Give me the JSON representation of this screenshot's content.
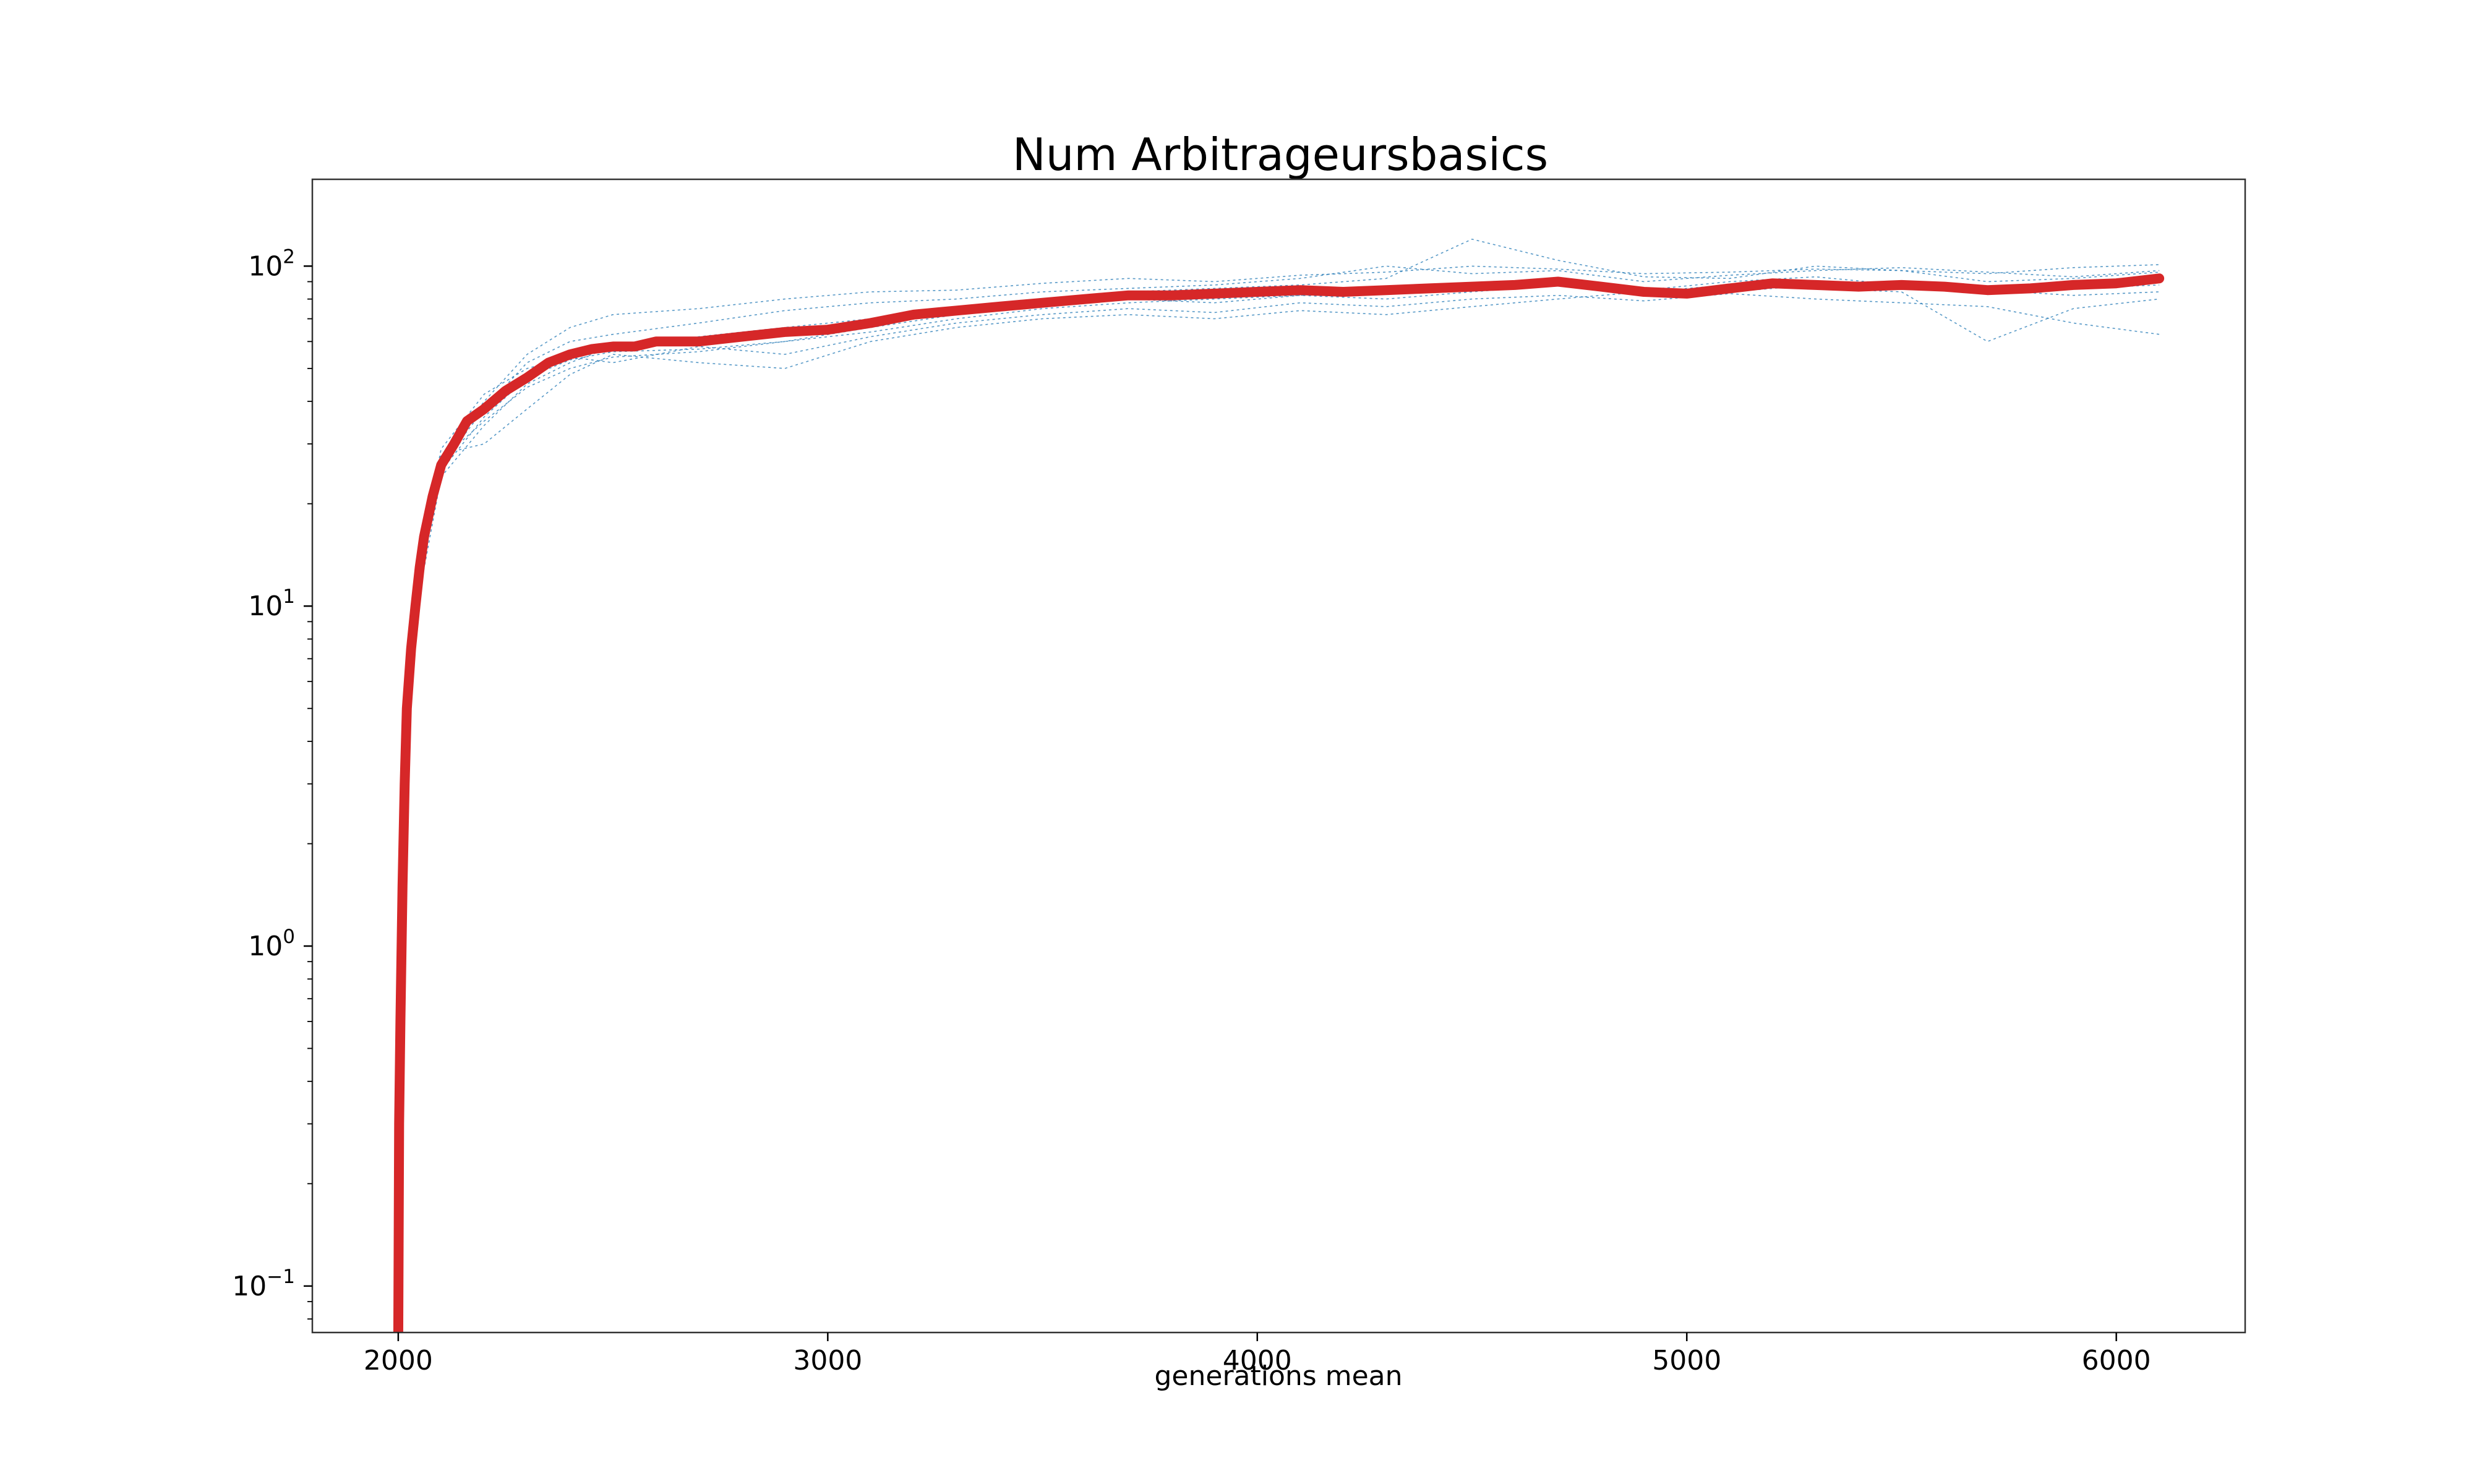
{
  "chart_data": {
    "type": "line",
    "title": "Num Arbitrageursbasics",
    "xlabel": "generations mean",
    "ylabel": "",
    "yscale": "log",
    "xlim": [
      1800,
      6300
    ],
    "ylim": [
      0.073,
      180
    ],
    "xticks": [
      2000,
      3000,
      4000,
      5000,
      6000
    ],
    "xtick_labels": [
      "2000",
      "3000",
      "4000",
      "5000",
      "6000"
    ],
    "yticks": [
      0.1,
      1,
      10,
      100
    ],
    "ytick_labels": [
      {
        "base": "10",
        "exp": "−1"
      },
      {
        "base": "10",
        "exp": "0"
      },
      {
        "base": "10",
        "exp": "1"
      },
      {
        "base": "10",
        "exp": "2"
      }
    ],
    "grid": false,
    "legend": "none",
    "colors": {
      "mean": "#d62728",
      "runs": "#1f77b4"
    },
    "mean_series": {
      "x": [
        2000,
        2002,
        2005,
        2010,
        2015,
        2020,
        2030,
        2040,
        2050,
        2060,
        2080,
        2100,
        2130,
        2160,
        2200,
        2250,
        2300,
        2350,
        2400,
        2450,
        2500,
        2550,
        2600,
        2700,
        2800,
        2900,
        3000,
        3100,
        3200,
        3300,
        3400,
        3500,
        3600,
        3700,
        3800,
        3900,
        4000,
        4100,
        4200,
        4300,
        4400,
        4500,
        4600,
        4700,
        4800,
        4900,
        5000,
        5100,
        5200,
        5300,
        5400,
        5500,
        5600,
        5700,
        5800,
        5900,
        6000,
        6100
      ],
      "y": [
        0.07,
        0.3,
        0.6,
        1.5,
        3.0,
        5.0,
        7.5,
        10,
        13,
        16,
        21,
        26,
        30,
        35,
        38,
        43,
        47,
        52,
        55,
        57,
        58,
        58,
        60,
        60,
        62,
        64,
        65,
        68,
        72,
        74,
        76,
        78,
        80,
        82,
        82,
        83,
        84,
        85,
        84,
        85,
        86,
        87,
        88,
        90,
        87,
        84,
        83,
        86,
        89,
        88,
        87,
        88,
        87,
        85,
        86,
        88,
        89,
        92
      ]
    },
    "runs": [
      {
        "x": [
          2050,
          2100,
          2200,
          2300,
          2400,
          2500,
          2700,
          2900,
          3100,
          3300,
          3500,
          3700,
          3900,
          4100,
          4300,
          4500,
          4700,
          4900,
          5100,
          5300,
          5500,
          5700,
          5900,
          6100
        ],
        "y": [
          13,
          27,
          40,
          55,
          66,
          72,
          75,
          80,
          84,
          85,
          89,
          92,
          90,
          94,
          96,
          100,
          98,
          95,
          96,
          98,
          97,
          95,
          99,
          101
        ]
      },
      {
        "x": [
          2050,
          2100,
          2200,
          2300,
          2400,
          2500,
          2700,
          2900,
          3100,
          3300,
          3500,
          3700,
          3900,
          4100,
          4300,
          4500,
          4700,
          4900,
          5100,
          5300,
          5500,
          5700,
          5900,
          6100
        ],
        "y": [
          12,
          25,
          36,
          47,
          53,
          56,
          57,
          60,
          64,
          70,
          75,
          78,
          80,
          82,
          85,
          88,
          90,
          85,
          90,
          93,
          88,
          85,
          82,
          84
        ]
      },
      {
        "x": [
          2050,
          2100,
          2200,
          2300,
          2400,
          2500,
          2700,
          2900,
          3100,
          3300,
          3500,
          3700,
          3900,
          4100,
          4300,
          4500,
          4700,
          4900,
          5100,
          5300,
          5500,
          5700,
          5900,
          6100
        ],
        "y": [
          14,
          29,
          42,
          50,
          54,
          52,
          58,
          55,
          62,
          68,
          72,
          75,
          73,
          78,
          76,
          80,
          82,
          79,
          83,
          80,
          78,
          76,
          68,
          63
        ]
      },
      {
        "x": [
          2050,
          2100,
          2200,
          2300,
          2400,
          2500,
          2700,
          2900,
          3100,
          3300,
          3500,
          3700,
          3900,
          4100,
          4300,
          4500,
          4700,
          4900,
          5100,
          5300,
          5500,
          5700,
          5900,
          6100
        ],
        "y": [
          11,
          24,
          34,
          45,
          52,
          58,
          62,
          66,
          70,
          76,
          80,
          84,
          86,
          88,
          92,
          120,
          104,
          93,
          92,
          100,
          97,
          90,
          92,
          96
        ]
      },
      {
        "x": [
          2050,
          2100,
          2200,
          2300,
          2400,
          2500,
          2700,
          2900,
          3100,
          3300,
          3500,
          3700,
          3900,
          4100,
          4300,
          4500,
          4700,
          4900,
          5100,
          5300,
          5500,
          5700,
          5900,
          6100
        ],
        "y": [
          13,
          28,
          30,
          38,
          48,
          55,
          52,
          50,
          60,
          66,
          70,
          72,
          70,
          74,
          72,
          76,
          80,
          84,
          88,
          86,
          84,
          60,
          75,
          80
        ]
      },
      {
        "x": [
          2050,
          2100,
          2200,
          2300,
          2400,
          2500,
          2700,
          2900,
          3100,
          3300,
          3500,
          3700,
          3900,
          4100,
          4300,
          4500,
          4700,
          4900,
          5100,
          5300,
          5500,
          5700,
          5900,
          6100
        ],
        "y": [
          12,
          26,
          38,
          52,
          60,
          63,
          68,
          74,
          78,
          80,
          84,
          86,
          88,
          92,
          100,
          95,
          97,
          90,
          94,
          97,
          99,
          96,
          93,
          97
        ]
      },
      {
        "x": [
          2050,
          2100,
          2200,
          2300,
          2400,
          2500,
          2700,
          2900,
          3100,
          3300,
          3500,
          3700,
          3900,
          4100,
          4300,
          4500,
          4700,
          4900,
          5100,
          5300,
          5500,
          5700,
          5900,
          6100
        ],
        "y": [
          13,
          27,
          35,
          44,
          50,
          54,
          56,
          60,
          66,
          72,
          76,
          80,
          78,
          82,
          80,
          84,
          88,
          86,
          84,
          88,
          86,
          83,
          86,
          88
        ]
      }
    ]
  }
}
